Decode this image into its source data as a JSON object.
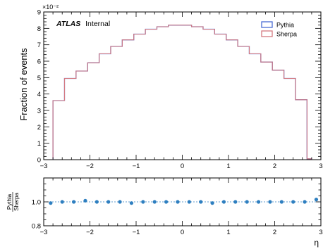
{
  "chart_data": [
    {
      "type": "histogram",
      "title": "",
      "experiment": "ATLAS",
      "status": "Internal",
      "xlabel": "",
      "ylabel": "Fraction of events",
      "y_multiplier": "×10⁻²",
      "xlim": [
        -3,
        3
      ],
      "ylim": [
        0,
        9
      ],
      "y_scale_factor": 0.01,
      "legend_position": "top-right",
      "x_ticks": [
        "−3",
        "−2",
        "−1",
        "0",
        "1",
        "2",
        "3"
      ],
      "y_ticks": [
        "0",
        "1",
        "2",
        "3",
        "4",
        "5",
        "6",
        "7",
        "8",
        "9"
      ],
      "bin_edges": [
        -2.8,
        -2.55,
        -2.3,
        -2.05,
        -1.8,
        -1.55,
        -1.3,
        -1.05,
        -0.8,
        -0.55,
        -0.3,
        -0.05,
        0.2,
        0.45,
        0.7,
        0.95,
        1.2,
        1.45,
        1.7,
        1.95,
        2.2,
        2.45,
        2.7,
        2.8
      ],
      "series": [
        {
          "name": "Pythia",
          "color": "#4a6cd4",
          "values": [
            3.6,
            4.95,
            5.4,
            5.9,
            6.45,
            6.9,
            7.3,
            7.65,
            7.95,
            8.1,
            8.2,
            8.2,
            8.1,
            7.95,
            7.65,
            7.3,
            6.9,
            6.45,
            5.95,
            5.45,
            4.95,
            3.65,
            0.05
          ]
        },
        {
          "name": "Sherpa",
          "color": "#d4787f",
          "values": [
            3.6,
            4.95,
            5.4,
            5.9,
            6.45,
            6.9,
            7.3,
            7.65,
            7.95,
            8.1,
            8.2,
            8.2,
            8.1,
            7.95,
            7.65,
            7.3,
            6.9,
            6.45,
            5.95,
            5.45,
            4.95,
            3.65,
            0.05
          ]
        }
      ]
    },
    {
      "type": "scatter",
      "title": "",
      "xlabel": "η",
      "ylabel_numerator": "Pythia",
      "ylabel_denominator": "Sherpa",
      "xlim": [
        -3,
        3
      ],
      "ylim": [
        0.8,
        1.2
      ],
      "reference_line": 1.0,
      "x_ticks": [
        "−3",
        "−2",
        "−1",
        "0",
        "1",
        "2",
        "3"
      ],
      "y_ticks": [
        "0.8",
        "1.0"
      ],
      "color": "#2e7fc0",
      "x": [
        -2.85,
        -2.6,
        -2.35,
        -2.1,
        -1.85,
        -1.6,
        -1.35,
        -1.1,
        -0.85,
        -0.6,
        -0.35,
        -0.1,
        0.15,
        0.4,
        0.65,
        0.9,
        1.15,
        1.4,
        1.65,
        1.9,
        2.15,
        2.4,
        2.65,
        2.9
      ],
      "values": [
        0.99,
        1.0,
        1.0,
        1.01,
        1.0,
        1.0,
        1.0,
        0.99,
        1.0,
        1.0,
        1.0,
        1.0,
        1.0,
        1.0,
        0.99,
        1.0,
        1.0,
        1.0,
        1.0,
        1.0,
        1.0,
        1.0,
        1.0,
        1.02
      ]
    }
  ]
}
